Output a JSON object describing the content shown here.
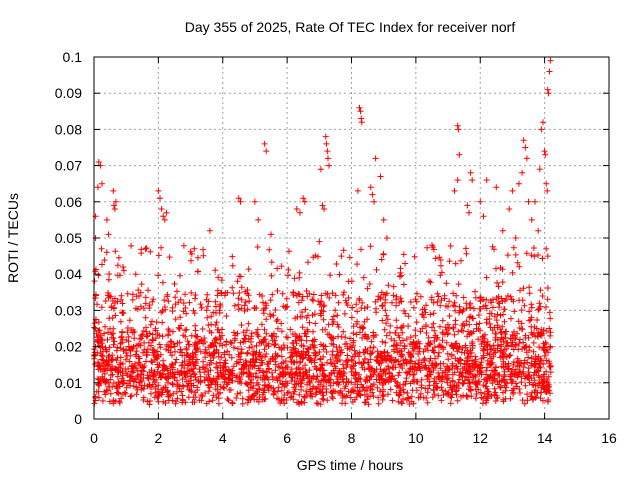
{
  "chart_data": {
    "type": "scatter",
    "title": "Day 355 of 2025, Rate Of TEC Index for receiver norf",
    "xlabel": "GPS time / hours",
    "ylabel": "ROTI / TECUs",
    "xlim": [
      0,
      16
    ],
    "ylim": [
      0,
      0.1
    ],
    "x_ticks": [
      "0",
      "2",
      "4",
      "6",
      "8",
      "10",
      "12",
      "14",
      "16"
    ],
    "y_ticks": [
      "0",
      "0.01",
      "0.02",
      "0.03",
      "0.04",
      "0.05",
      "0.06",
      "0.07",
      "0.08",
      "0.09",
      "0.1"
    ],
    "grid": true,
    "legend": "none",
    "marker": "plus",
    "marker_color": "#ff0000",
    "data_extent_x": [
      0,
      14.2
    ],
    "outliers": [
      {
        "x": 0.05,
        "y": 0.056
      },
      {
        "x": 0.05,
        "y": 0.05
      },
      {
        "x": 0.12,
        "y": 0.064
      },
      {
        "x": 0.15,
        "y": 0.071
      },
      {
        "x": 0.2,
        "y": 0.07
      },
      {
        "x": 0.25,
        "y": 0.065
      },
      {
        "x": 0.4,
        "y": 0.055
      },
      {
        "x": 0.45,
        "y": 0.051
      },
      {
        "x": 0.6,
        "y": 0.063
      },
      {
        "x": 0.62,
        "y": 0.059
      },
      {
        "x": 0.65,
        "y": 0.058
      },
      {
        "x": 0.68,
        "y": 0.06
      },
      {
        "x": 0.9,
        "y": 0.042
      },
      {
        "x": 1.3,
        "y": 0.04
      },
      {
        "x": 1.6,
        "y": 0.047
      },
      {
        "x": 2.0,
        "y": 0.063
      },
      {
        "x": 2.05,
        "y": 0.061
      },
      {
        "x": 2.1,
        "y": 0.058
      },
      {
        "x": 2.15,
        "y": 0.056
      },
      {
        "x": 2.2,
        "y": 0.055
      },
      {
        "x": 2.25,
        "y": 0.057
      },
      {
        "x": 3.6,
        "y": 0.052
      },
      {
        "x": 4.5,
        "y": 0.061
      },
      {
        "x": 4.55,
        "y": 0.06
      },
      {
        "x": 5.0,
        "y": 0.06
      },
      {
        "x": 5.1,
        "y": 0.055
      },
      {
        "x": 5.3,
        "y": 0.076
      },
      {
        "x": 5.35,
        "y": 0.074
      },
      {
        "x": 5.5,
        "y": 0.051
      },
      {
        "x": 6.3,
        "y": 0.058
      },
      {
        "x": 6.4,
        "y": 0.057
      },
      {
        "x": 6.5,
        "y": 0.061
      },
      {
        "x": 6.55,
        "y": 0.06
      },
      {
        "x": 7.05,
        "y": 0.069
      },
      {
        "x": 7.1,
        "y": 0.059
      },
      {
        "x": 7.15,
        "y": 0.058
      },
      {
        "x": 7.2,
        "y": 0.078
      },
      {
        "x": 7.22,
        "y": 0.076
      },
      {
        "x": 7.25,
        "y": 0.074
      },
      {
        "x": 7.27,
        "y": 0.072
      },
      {
        "x": 7.3,
        "y": 0.07
      },
      {
        "x": 7.0,
        "y": 0.049
      },
      {
        "x": 8.25,
        "y": 0.086
      },
      {
        "x": 8.28,
        "y": 0.085
      },
      {
        "x": 8.3,
        "y": 0.083
      },
      {
        "x": 8.32,
        "y": 0.082
      },
      {
        "x": 8.2,
        "y": 0.063
      },
      {
        "x": 8.6,
        "y": 0.064
      },
      {
        "x": 8.65,
        "y": 0.062
      },
      {
        "x": 8.7,
        "y": 0.06
      },
      {
        "x": 8.75,
        "y": 0.072
      },
      {
        "x": 8.9,
        "y": 0.067
      },
      {
        "x": 9.0,
        "y": 0.055
      },
      {
        "x": 9.1,
        "y": 0.05
      },
      {
        "x": 10.5,
        "y": 0.048
      },
      {
        "x": 11.2,
        "y": 0.063
      },
      {
        "x": 11.3,
        "y": 0.081
      },
      {
        "x": 11.32,
        "y": 0.08
      },
      {
        "x": 11.35,
        "y": 0.073
      },
      {
        "x": 11.3,
        "y": 0.066
      },
      {
        "x": 11.6,
        "y": 0.059
      },
      {
        "x": 11.65,
        "y": 0.057
      },
      {
        "x": 11.7,
        "y": 0.068
      },
      {
        "x": 11.75,
        "y": 0.066
      },
      {
        "x": 12.0,
        "y": 0.06
      },
      {
        "x": 12.1,
        "y": 0.056
      },
      {
        "x": 12.2,
        "y": 0.066
      },
      {
        "x": 12.5,
        "y": 0.064
      },
      {
        "x": 12.7,
        "y": 0.052
      },
      {
        "x": 12.9,
        "y": 0.058
      },
      {
        "x": 13.0,
        "y": 0.063
      },
      {
        "x": 13.1,
        "y": 0.05
      },
      {
        "x": 13.2,
        "y": 0.065
      },
      {
        "x": 13.3,
        "y": 0.068
      },
      {
        "x": 13.35,
        "y": 0.077
      },
      {
        "x": 13.4,
        "y": 0.075
      },
      {
        "x": 13.45,
        "y": 0.072
      },
      {
        "x": 13.5,
        "y": 0.06
      },
      {
        "x": 13.6,
        "y": 0.055
      },
      {
        "x": 13.7,
        "y": 0.06
      },
      {
        "x": 13.8,
        "y": 0.052
      },
      {
        "x": 13.85,
        "y": 0.069
      },
      {
        "x": 13.9,
        "y": 0.08
      },
      {
        "x": 13.95,
        "y": 0.082
      },
      {
        "x": 14.0,
        "y": 0.074
      },
      {
        "x": 14.02,
        "y": 0.073
      },
      {
        "x": 14.05,
        "y": 0.065
      },
      {
        "x": 14.08,
        "y": 0.063
      },
      {
        "x": 14.1,
        "y": 0.091
      },
      {
        "x": 14.12,
        "y": 0.09
      },
      {
        "x": 14.15,
        "y": 0.096
      },
      {
        "x": 14.18,
        "y": 0.099
      },
      {
        "x": 14.05,
        "y": 0.047
      },
      {
        "x": 14.1,
        "y": 0.045
      }
    ]
  }
}
